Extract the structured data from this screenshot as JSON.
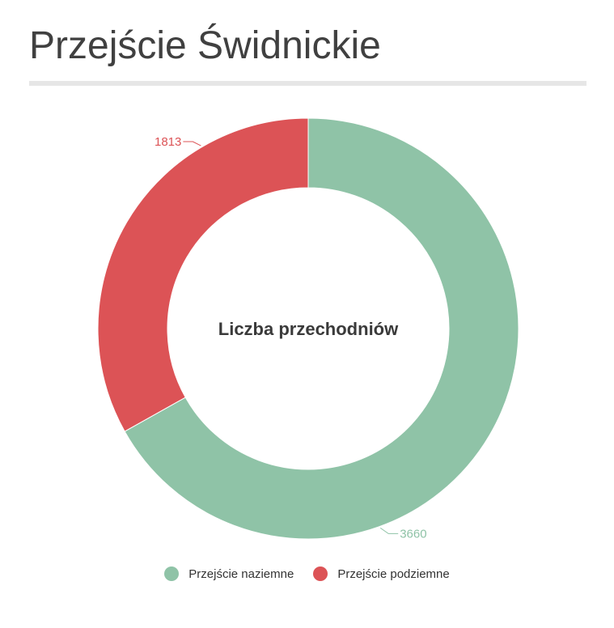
{
  "page": {
    "title": "Przejście Świdnickie"
  },
  "chart_data": {
    "type": "pie",
    "donut": true,
    "center_label": "Liczba przechodniów",
    "series": [
      {
        "name": "Przejście naziemne",
        "value": 3660,
        "label": "3660",
        "color": "#8fc3a7"
      },
      {
        "name": "Przejście podziemne",
        "value": 1813,
        "label": "1813",
        "color": "#dc5356"
      }
    ],
    "start": "top",
    "direction": "clockwise",
    "legend": "bottom-center"
  }
}
